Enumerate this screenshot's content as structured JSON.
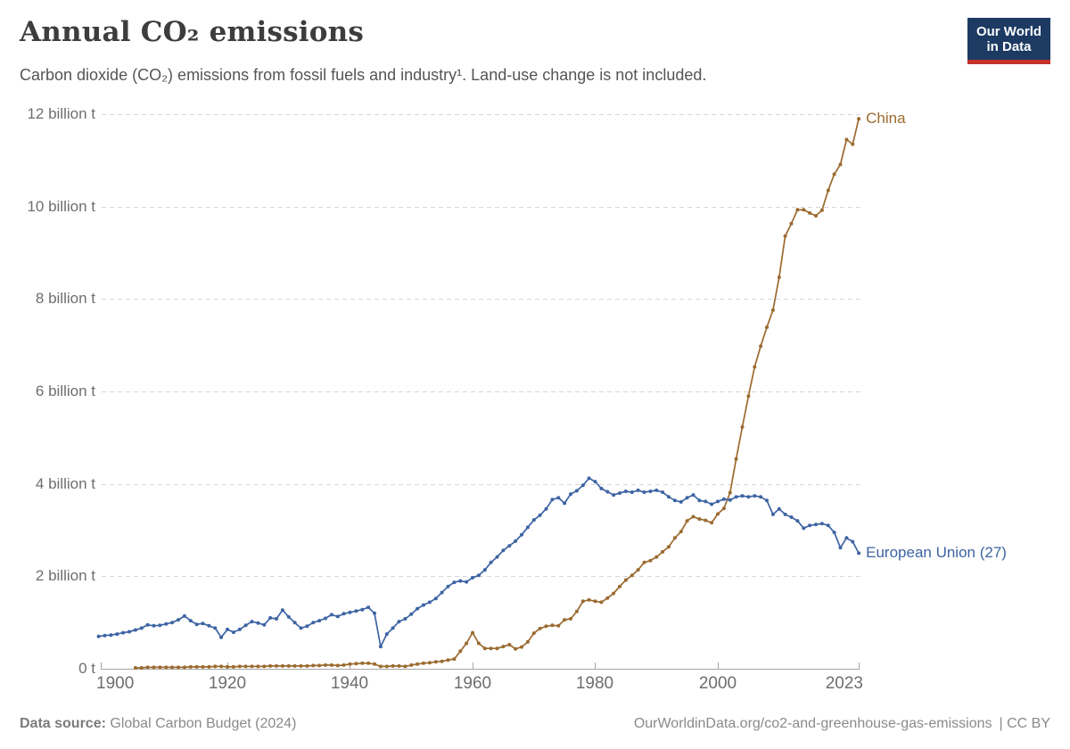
{
  "header": {
    "title": "Annual CO₂ emissions",
    "subtitle": "Carbon dioxide (CO₂) emissions from fossil fuels and industry¹. Land-use change is not included.",
    "logo_line1": "Our World",
    "logo_line2": "in Data",
    "logo_bg": "#1d3a63",
    "logo_accent": "#c5322c"
  },
  "chart_data": {
    "type": "line",
    "title": "Annual CO₂ emissions",
    "xlabel": "",
    "ylabel": "billion tonnes of CO₂",
    "xlim": [
      1899,
      2023
    ],
    "ylim": [
      0,
      12
    ],
    "grid": true,
    "legend_position": "end-of-line",
    "y_ticks": [
      {
        "value": 12,
        "label": "12 billion t"
      },
      {
        "value": 10,
        "label": "10 billion t"
      },
      {
        "value": 8,
        "label": "8 billion t"
      },
      {
        "value": 6,
        "label": "6 billion t"
      },
      {
        "value": 4,
        "label": "4 billion t"
      },
      {
        "value": 2,
        "label": "2 billion t"
      },
      {
        "value": 0,
        "label": "0 t"
      }
    ],
    "x_ticks": [
      {
        "value": 1900,
        "label": "1900"
      },
      {
        "value": 1920,
        "label": "1920"
      },
      {
        "value": 1940,
        "label": "1940"
      },
      {
        "value": 1960,
        "label": "1960"
      },
      {
        "value": 1980,
        "label": "1980"
      },
      {
        "value": 2000,
        "label": "2000"
      },
      {
        "value": 2023,
        "label": "2023"
      }
    ],
    "series": [
      {
        "name": "China",
        "color": "#9B6A2F",
        "start_year": 1905,
        "values": [
          0.02,
          0.02,
          0.03,
          0.03,
          0.03,
          0.03,
          0.03,
          0.03,
          0.03,
          0.04,
          0.04,
          0.04,
          0.04,
          0.05,
          0.05,
          0.04,
          0.04,
          0.05,
          0.05,
          0.05,
          0.05,
          0.05,
          0.06,
          0.06,
          0.06,
          0.06,
          0.06,
          0.06,
          0.06,
          0.07,
          0.07,
          0.08,
          0.08,
          0.07,
          0.08,
          0.1,
          0.11,
          0.12,
          0.12,
          0.1,
          0.05,
          0.05,
          0.06,
          0.06,
          0.05,
          0.08,
          0.1,
          0.12,
          0.13,
          0.15,
          0.16,
          0.19,
          0.21,
          0.38,
          0.55,
          0.78,
          0.55,
          0.44,
          0.44,
          0.44,
          0.48,
          0.52,
          0.43,
          0.47,
          0.58,
          0.77,
          0.87,
          0.92,
          0.94,
          0.93,
          1.06,
          1.08,
          1.24,
          1.46,
          1.49,
          1.46,
          1.44,
          1.53,
          1.63,
          1.78,
          1.92,
          2.02,
          2.14,
          2.3,
          2.34,
          2.42,
          2.53,
          2.64,
          2.83,
          2.97,
          3.2,
          3.29,
          3.24,
          3.21,
          3.16,
          3.35,
          3.47,
          3.81,
          4.54,
          5.23,
          5.9,
          6.53,
          6.98,
          7.39,
          7.76,
          8.47,
          9.36,
          9.63,
          9.93,
          9.93,
          9.86,
          9.8,
          9.92,
          10.35,
          10.7,
          10.91,
          11.45,
          11.35,
          11.9
        ]
      },
      {
        "name": "European Union (27)",
        "color": "#3D64A3",
        "start_year": 1899,
        "values": [
          0.7,
          0.72,
          0.73,
          0.75,
          0.78,
          0.8,
          0.84,
          0.88,
          0.95,
          0.93,
          0.94,
          0.97,
          1.0,
          1.06,
          1.14,
          1.04,
          0.96,
          0.98,
          0.93,
          0.88,
          0.68,
          0.85,
          0.79,
          0.85,
          0.94,
          1.02,
          0.99,
          0.95,
          1.1,
          1.08,
          1.27,
          1.12,
          1.0,
          0.88,
          0.92,
          1.0,
          1.04,
          1.09,
          1.17,
          1.13,
          1.19,
          1.22,
          1.25,
          1.28,
          1.33,
          1.2,
          0.48,
          0.75,
          0.88,
          1.02,
          1.08,
          1.18,
          1.3,
          1.38,
          1.44,
          1.52,
          1.65,
          1.78,
          1.87,
          1.9,
          1.88,
          1.97,
          2.02,
          2.14,
          2.3,
          2.42,
          2.56,
          2.66,
          2.76,
          2.9,
          3.06,
          3.22,
          3.32,
          3.46,
          3.66,
          3.7,
          3.58,
          3.78,
          3.85,
          3.97,
          4.12,
          4.05,
          3.9,
          3.83,
          3.76,
          3.8,
          3.84,
          3.82,
          3.86,
          3.82,
          3.84,
          3.86,
          3.82,
          3.72,
          3.64,
          3.61,
          3.7,
          3.76,
          3.64,
          3.62,
          3.56,
          3.62,
          3.67,
          3.65,
          3.72,
          3.74,
          3.72,
          3.74,
          3.72,
          3.64,
          3.34,
          3.46,
          3.34,
          3.28,
          3.2,
          3.04,
          3.1,
          3.12,
          3.14,
          3.1,
          2.95,
          2.62,
          2.83,
          2.75,
          2.5
        ]
      }
    ]
  },
  "footer": {
    "source_label": "Data source:",
    "source": " Global Carbon Budget (2024)",
    "url": "OurWorldinData.org/co2-and-greenhouse-gas-emissions",
    "license": "| CC BY"
  }
}
